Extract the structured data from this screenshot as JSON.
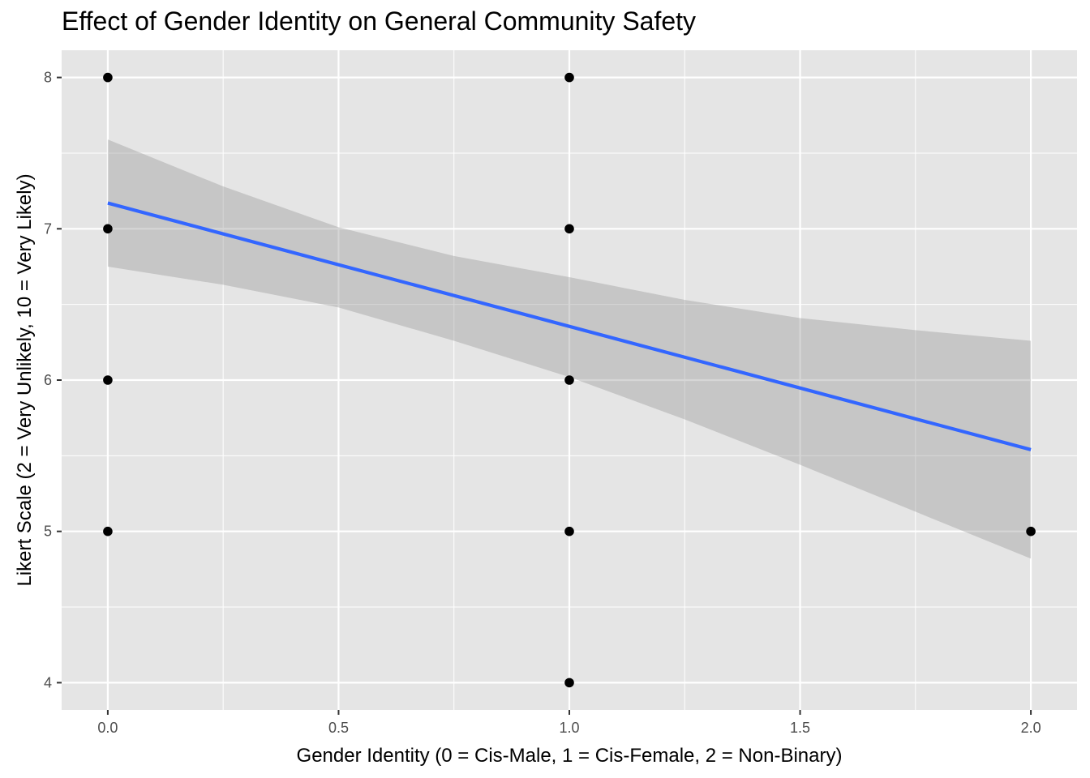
{
  "chart_data": {
    "type": "scatter",
    "title": "Effect of Gender Identity on General Community Safety",
    "xlabel": "Gender Identity (0 = Cis-Male, 1 = Cis-Female, 2 = Non-Binary)",
    "ylabel": "Likert Scale (2 = Very Unlikely, 10 = Very Likely)",
    "xlim": [
      -0.1,
      2.1
    ],
    "ylim": [
      3.82,
      8.18
    ],
    "x_ticks": [
      0.0,
      0.5,
      1.0,
      1.5,
      2.0
    ],
    "x_tick_labels": [
      "0.0",
      "0.5",
      "1.0",
      "1.5",
      "2.0"
    ],
    "y_ticks": [
      4,
      5,
      6,
      7,
      8
    ],
    "y_tick_labels": [
      "4",
      "5",
      "6",
      "7",
      "8"
    ],
    "grid": true,
    "points": [
      {
        "x": 0,
        "y": 8
      },
      {
        "x": 0,
        "y": 7
      },
      {
        "x": 0,
        "y": 6
      },
      {
        "x": 0,
        "y": 5
      },
      {
        "x": 1,
        "y": 8
      },
      {
        "x": 1,
        "y": 7
      },
      {
        "x": 1,
        "y": 6
      },
      {
        "x": 1,
        "y": 5
      },
      {
        "x": 1,
        "y": 4
      },
      {
        "x": 2,
        "y": 5
      }
    ],
    "regression": {
      "x": [
        0,
        0.25,
        0.5,
        0.75,
        1.0,
        1.25,
        1.5,
        1.75,
        2.0
      ],
      "fit": [
        7.17,
        6.97,
        6.76,
        6.56,
        6.36,
        6.15,
        5.95,
        5.75,
        5.54
      ],
      "upper": [
        7.59,
        7.28,
        7.01,
        6.82,
        6.68,
        6.53,
        6.41,
        6.33,
        6.26
      ],
      "lower": [
        6.75,
        6.63,
        6.48,
        6.26,
        6.02,
        5.74,
        5.44,
        5.13,
        4.82
      ]
    },
    "colors": {
      "panel": "#e5e5e5",
      "grid": "#ffffff",
      "points": "#000000",
      "fit_line": "#3366ff",
      "ribbon": "#999999"
    }
  }
}
